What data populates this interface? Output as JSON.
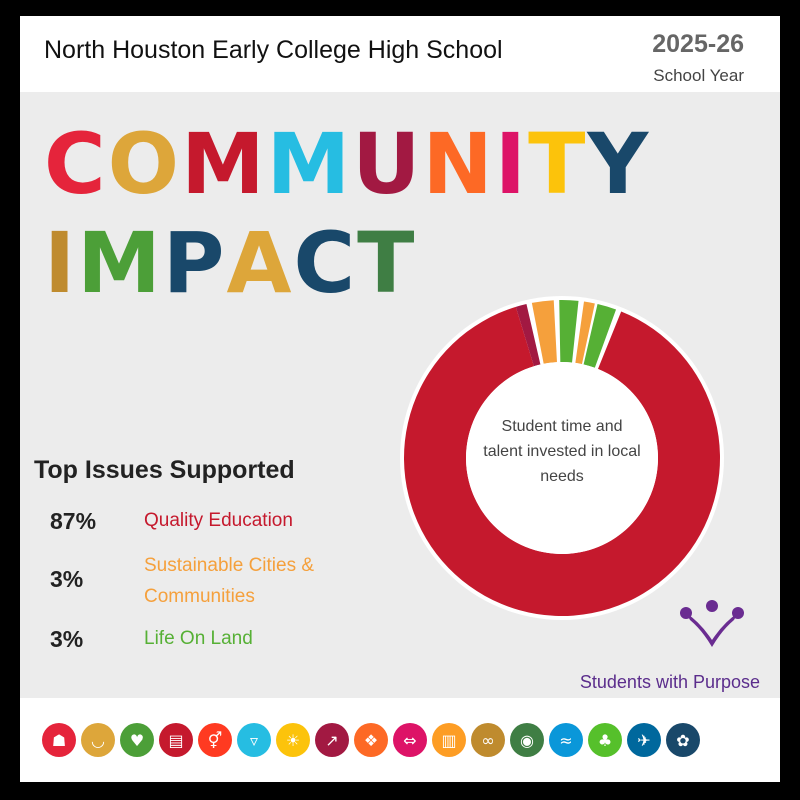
{
  "header": {
    "school": "North Houston Early College High School",
    "year": "2025-26",
    "year_sub": "School Year"
  },
  "headline": {
    "line1": [
      {
        "ch": "C",
        "color": "#e5243b"
      },
      {
        "ch": "O",
        "color": "#dda63a"
      },
      {
        "ch": "M",
        "color": "#4c9f38"
      },
      {
        "ch": "M",
        "color": "#c5192d"
      },
      {
        "ch": "U",
        "color": "#26bde2"
      },
      {
        "ch": "N",
        "color": "#fcc30b"
      },
      {
        "ch": "I",
        "color": "#a21942"
      },
      {
        "ch": "T",
        "color": "#fd6925"
      },
      {
        "ch": "Y",
        "color": "#dd1367"
      },
      {
        "ch": "",
        "color": "#000"
      }
    ],
    "line2": []
  },
  "issues": {
    "title": "Top Issues Supported",
    "items": [
      {
        "pct": "87%",
        "label": "Quality Education",
        "color": "#c5192d"
      },
      {
        "pct": "3%",
        "label": "Sustainable Cities & Communities",
        "color": "#f5a03c"
      },
      {
        "pct": "3%",
        "label": "Life On Land",
        "color": "#56b035"
      }
    ]
  },
  "donut": {
    "center_text": "Student time and talent invested in local needs"
  },
  "tagline": "Students with Purpose",
  "chart_data": {
    "type": "pie",
    "categories": [
      "Quality Education",
      "Sustainable Cities & Communities",
      "Life On Land"
    ],
    "values": [
      87,
      3,
      3
    ],
    "title": ""
  },
  "footer_icons": [
    "people-icon",
    "bowl-icon",
    "heartbeat-icon",
    "book-icon",
    "gender-icon",
    "water-drop-icon",
    "sun-icon",
    "growth-chart-icon",
    "industry-icon",
    "equality-icon",
    "city-icon",
    "infinity-icon",
    "eye-globe-icon",
    "fish-icon",
    "tree-icon",
    "dove-icon",
    "globe-circles-icon"
  ]
}
